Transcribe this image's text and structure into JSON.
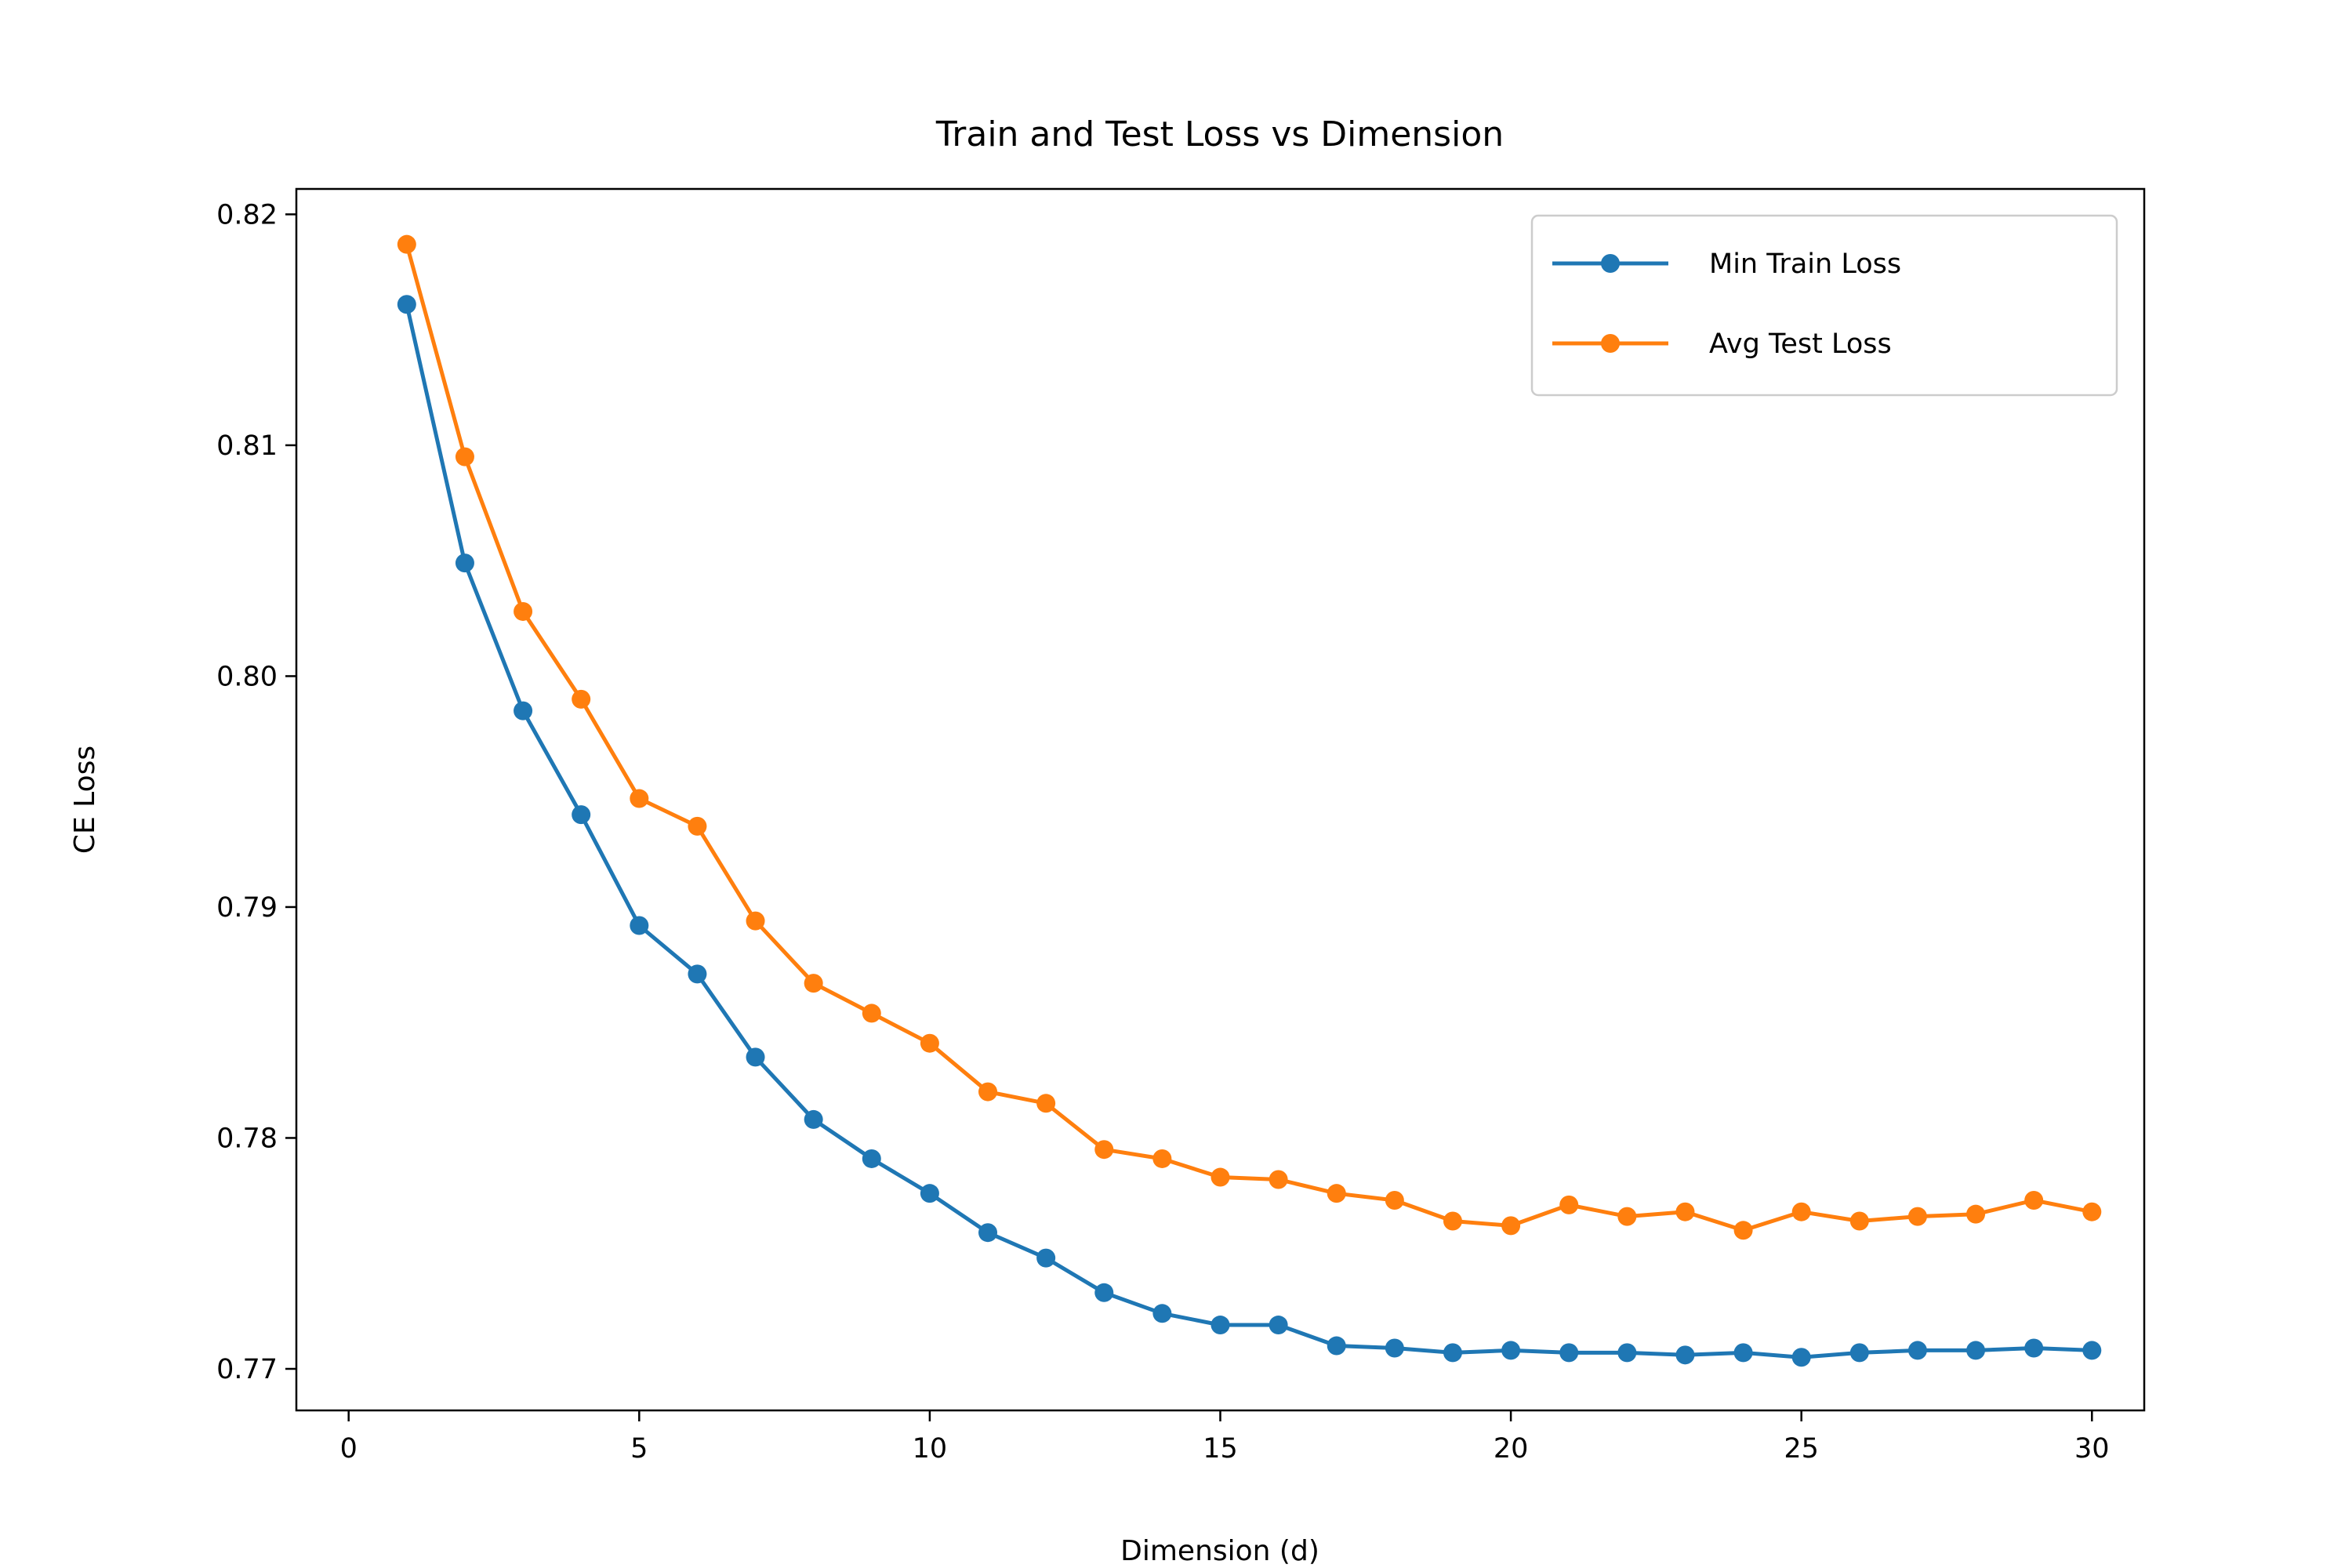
{
  "chart_data": {
    "type": "line",
    "title": "Train and Test Loss vs Dimension",
    "xlabel": "Dimension (d)",
    "ylabel": "CE Loss",
    "xlim": [
      -0.9,
      30.9
    ],
    "ylim": [
      0.7682,
      0.8211
    ],
    "xticks": [
      0,
      5,
      10,
      15,
      20,
      25,
      30
    ],
    "xtick_labels": [
      "0",
      "5",
      "10",
      "15",
      "20",
      "25",
      "30"
    ],
    "yticks": [
      0.77,
      0.78,
      0.79,
      0.8,
      0.81,
      0.82
    ],
    "ytick_labels": [
      "0.77",
      "0.78",
      "0.79",
      "0.80",
      "0.81",
      "0.82"
    ],
    "grid": false,
    "legend_position": "top-right",
    "x": [
      1,
      2,
      3,
      4,
      5,
      6,
      7,
      8,
      9,
      10,
      11,
      12,
      13,
      14,
      15,
      16,
      17,
      18,
      19,
      20,
      21,
      22,
      23,
      24,
      25,
      26,
      27,
      28,
      29,
      30
    ],
    "series": [
      {
        "name": "Min Train Loss",
        "color": "#1f77b4",
        "values": [
          0.8161,
          0.8049,
          0.7985,
          0.794,
          0.7892,
          0.7871,
          0.7835,
          0.7808,
          0.7791,
          0.7776,
          0.7759,
          0.7748,
          0.7733,
          0.7724,
          0.7719,
          0.7719,
          0.771,
          0.7709,
          0.7707,
          0.7708,
          0.7707,
          0.7707,
          0.7706,
          0.7707,
          0.7705,
          0.7707,
          0.7708,
          0.7708,
          0.7709,
          0.7708
        ]
      },
      {
        "name": "Avg Test Loss",
        "color": "#ff7f0e",
        "values": [
          0.8187,
          0.8095,
          0.8028,
          0.799,
          0.7947,
          0.7935,
          0.7894,
          0.7867,
          0.7854,
          0.7841,
          0.782,
          0.7815,
          0.7795,
          0.7791,
          0.7783,
          0.7782,
          0.7776,
          0.7773,
          0.7764,
          0.7762,
          0.7771,
          0.7766,
          0.7768,
          0.776,
          0.7768,
          0.7764,
          0.7766,
          0.7767,
          0.7773,
          0.7768
        ]
      }
    ]
  }
}
